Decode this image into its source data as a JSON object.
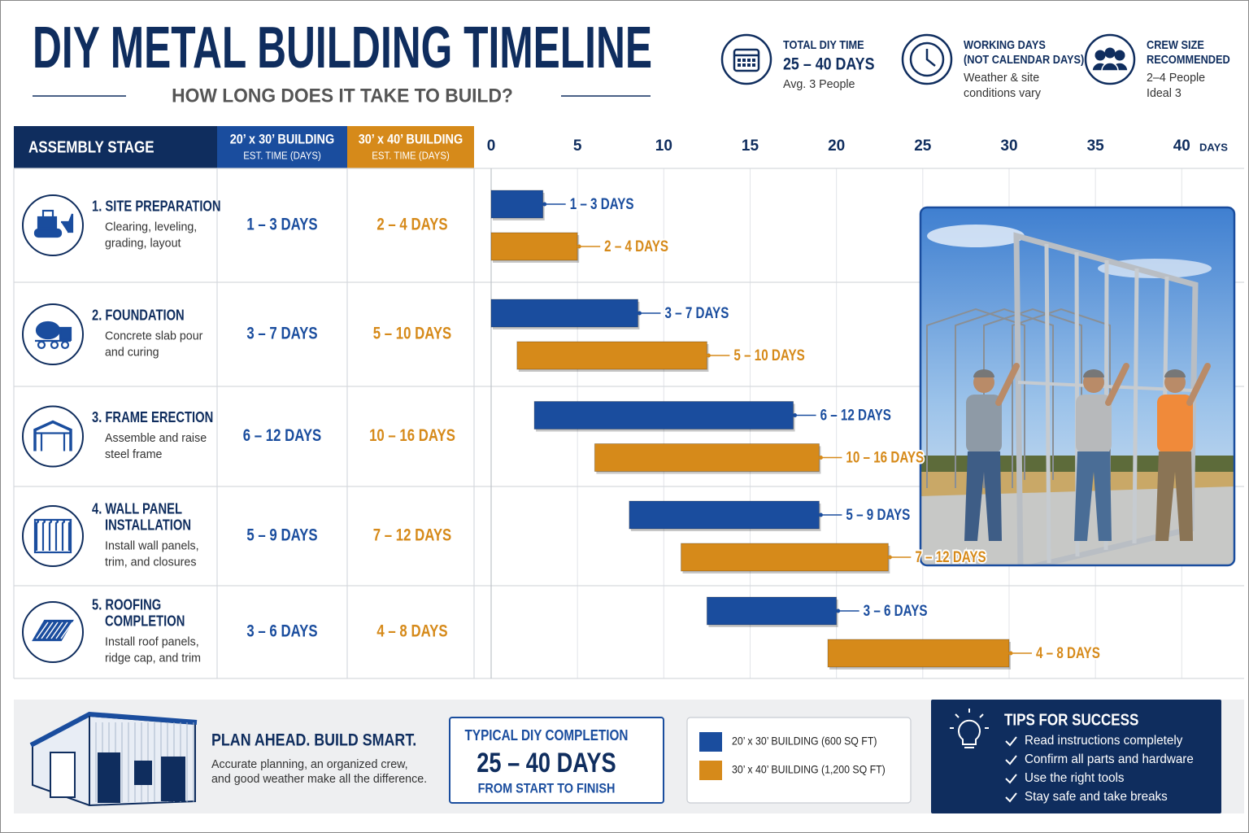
{
  "header": {
    "title": "DIY METAL BUILDING TIMELINE",
    "subtitle": "HOW LONG DOES IT TAKE TO BUILD?"
  },
  "stats": [
    {
      "label": [
        "TOTAL DIY TIME"
      ],
      "value": "25 – 40 DAYS",
      "note": [
        "Avg. 3 People"
      ]
    },
    {
      "label": [
        "WORKING DAYS",
        "(NOT CALENDAR DAYS)"
      ],
      "note": [
        "Weather & site",
        "conditions vary"
      ]
    },
    {
      "label": [
        "CREW SIZE",
        "RECOMMENDED"
      ],
      "note": [
        "2–4 People",
        "Ideal 3"
      ]
    }
  ],
  "table": {
    "headers": [
      {
        "title": "ASSEMBLY STAGE"
      },
      {
        "title": "20’ x 30’ BUILDING",
        "subtitle": "EST. TIME (DAYS)"
      },
      {
        "title": "30’ x 40’ BUILDING",
        "subtitle": "EST. TIME (DAYS)"
      }
    ],
    "rows": [
      {
        "title": [
          "1. SITE PREPARATION"
        ],
        "description": [
          "Clearing, leveling,",
          "grading, layout"
        ]
      },
      {
        "title": [
          "2. FOUNDATION"
        ],
        "description": [
          "Concrete slab pour",
          "and curing"
        ]
      },
      {
        "title": [
          "3. FRAME ERECTION"
        ],
        "description": [
          "Assemble and raise",
          "steel frame"
        ]
      },
      {
        "title": [
          "4. WALL PANEL",
          "INSTALLATION"
        ],
        "description": [
          "Install wall panels,",
          "trim, and closures"
        ]
      },
      {
        "title": [
          "5. ROOFING",
          "COMPLETION"
        ],
        "description": [
          "Install roof panels,",
          "ridge cap, and trim"
        ]
      }
    ]
  },
  "chart_data": {
    "type": "gantt",
    "xlim": [
      0,
      43
    ],
    "xticks": [
      0,
      5,
      10,
      15,
      20,
      25,
      30,
      35,
      40
    ],
    "x_unit": "DAYS",
    "grid": true,
    "series": [
      {
        "name": "20’ x 30’ BUILDING (600 SQ FT)",
        "color": "#1a4d9e",
        "start": [
          0,
          0,
          2.5,
          8,
          12.5
        ],
        "end": [
          3,
          8.5,
          17.5,
          19,
          20
        ],
        "labels": [
          "1 – 3 DAYS",
          "3 – 7 DAYS",
          "6 – 12 DAYS",
          "5 – 9 DAYS",
          "3 – 6 DAYS"
        ]
      },
      {
        "name": "30’ x 40’ BUILDING (1,200 SQ FT)",
        "color": "#d68a1a",
        "start": [
          0,
          1.5,
          6,
          11,
          19.5
        ],
        "end": [
          5,
          12.5,
          19,
          23,
          30
        ],
        "labels": [
          "2 – 4 DAYS",
          "5 – 10 DAYS",
          "10 – 16 DAYS",
          "7 – 12 DAYS",
          "4 – 8 DAYS"
        ]
      }
    ]
  },
  "footer": {
    "plan": {
      "title": "PLAN AHEAD. BUILD SMART.",
      "text": [
        "Accurate planning, an organized crew,",
        "and good weather make all the difference."
      ]
    },
    "completion": {
      "label": "TYPICAL DIY COMPLETION",
      "value": "25 – 40 DAYS",
      "note": "FROM START TO FINISH"
    },
    "tips": {
      "title": "TIPS FOR SUCCESS",
      "items": [
        "Read instructions completely",
        "Confirm all parts and hardware",
        "Use the right tools",
        "Stay safe and take breaks"
      ]
    }
  }
}
